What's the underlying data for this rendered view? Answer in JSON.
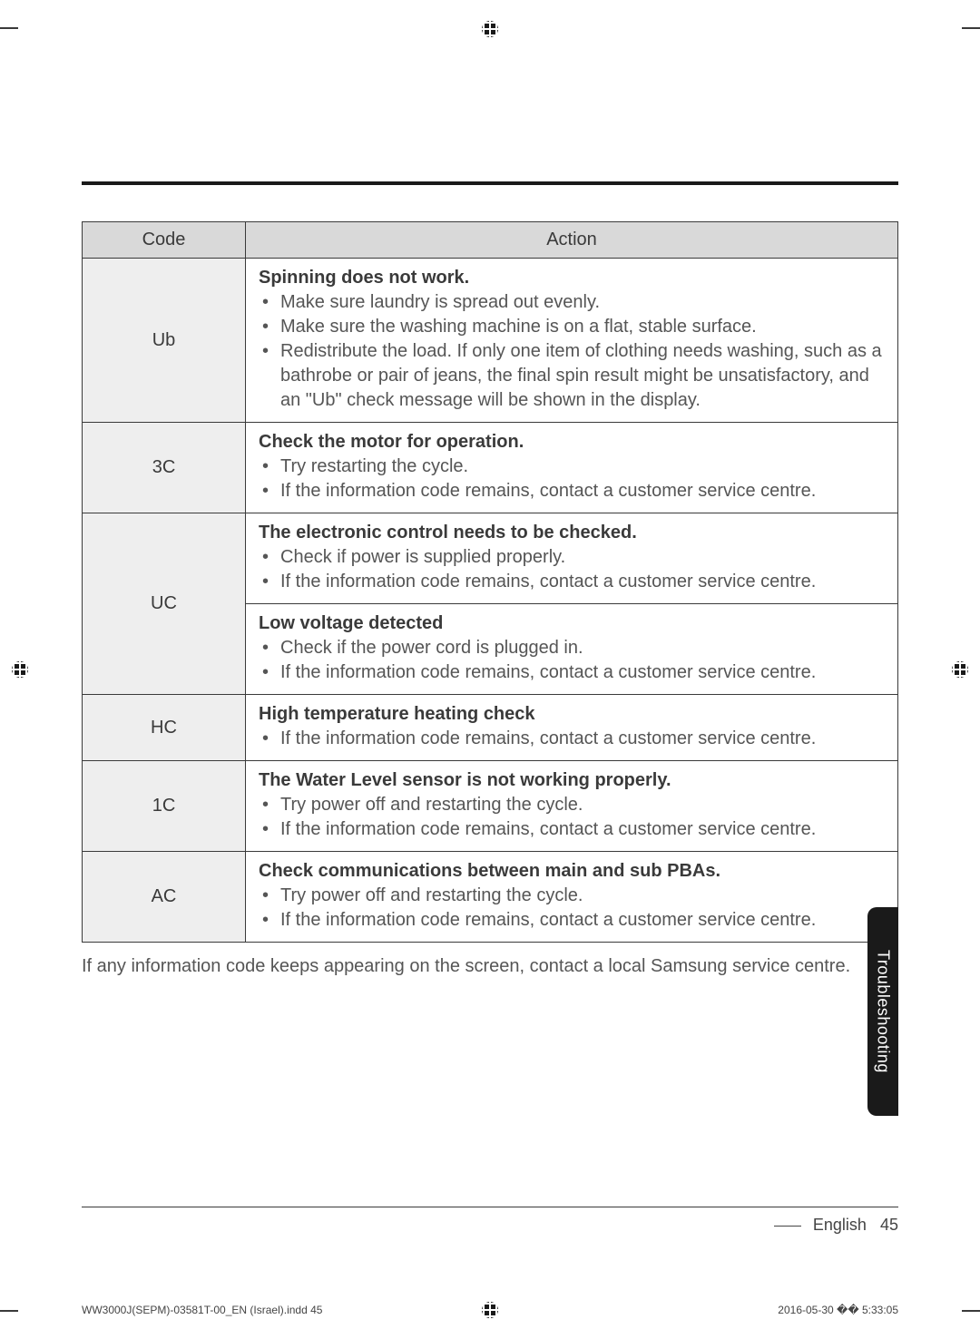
{
  "table": {
    "headers": {
      "code": "Code",
      "action": "Action"
    },
    "rows": [
      {
        "code": "Ub",
        "sections": [
          {
            "heading": "Spinning does not work.",
            "bullets": [
              "Make sure laundry is spread out evenly.",
              "Make sure the washing machine is on a flat, stable surface.",
              "Redistribute the load. If only one item of clothing needs washing, such as a bathrobe or pair of jeans, the final spin result  might be unsatisfactory, and an \"Ub\" check message will be shown in the display."
            ]
          }
        ]
      },
      {
        "code": "3C",
        "sections": [
          {
            "heading": "Check the motor for operation.",
            "bullets": [
              "Try restarting the cycle.",
              "If the information code remains, contact a customer service centre."
            ]
          }
        ]
      },
      {
        "code": "UC",
        "sections": [
          {
            "heading": "The electronic control needs to be checked.",
            "bullets": [
              "Check if power is supplied properly.",
              "If the information code remains, contact a customer service centre."
            ]
          },
          {
            "heading": "Low voltage detected",
            "bullets": [
              "Check if the power cord is plugged in.",
              "If the information code remains, contact a customer service centre."
            ]
          }
        ]
      },
      {
        "code": "HC",
        "sections": [
          {
            "heading": "High temperature heating check",
            "bullets": [
              "If the information code remains, contact a customer service centre."
            ]
          }
        ]
      },
      {
        "code": "1C",
        "sections": [
          {
            "heading": "The Water Level sensor is not working properly.",
            "bullets": [
              "Try power off and restarting the cycle.",
              "If the information code remains, contact a customer service centre."
            ]
          }
        ]
      },
      {
        "code": "AC",
        "sections": [
          {
            "heading": "Check communications between main and sub PBAs.",
            "bullets": [
              "Try power off and restarting the cycle.",
              "If the information code remains, contact a customer service centre."
            ]
          }
        ]
      }
    ]
  },
  "afternote": "If any information code keeps appearing on the screen, contact a local Samsung service centre.",
  "side_tab": "Troubleshooting",
  "footer": {
    "lang": "English",
    "page": "45"
  },
  "print": {
    "left": "WW3000J(SEPM)-03581T-00_EN (Israel).indd   45",
    "right": "2016-05-30   �� 5:33:05"
  },
  "colors": {
    "header_bg": "#d9d9d9",
    "code_bg": "#eeeeee",
    "border": "#3a3a3a",
    "tab_bg": "#1a1a1a",
    "text": "#3a3a3a",
    "muted": "#555555"
  }
}
